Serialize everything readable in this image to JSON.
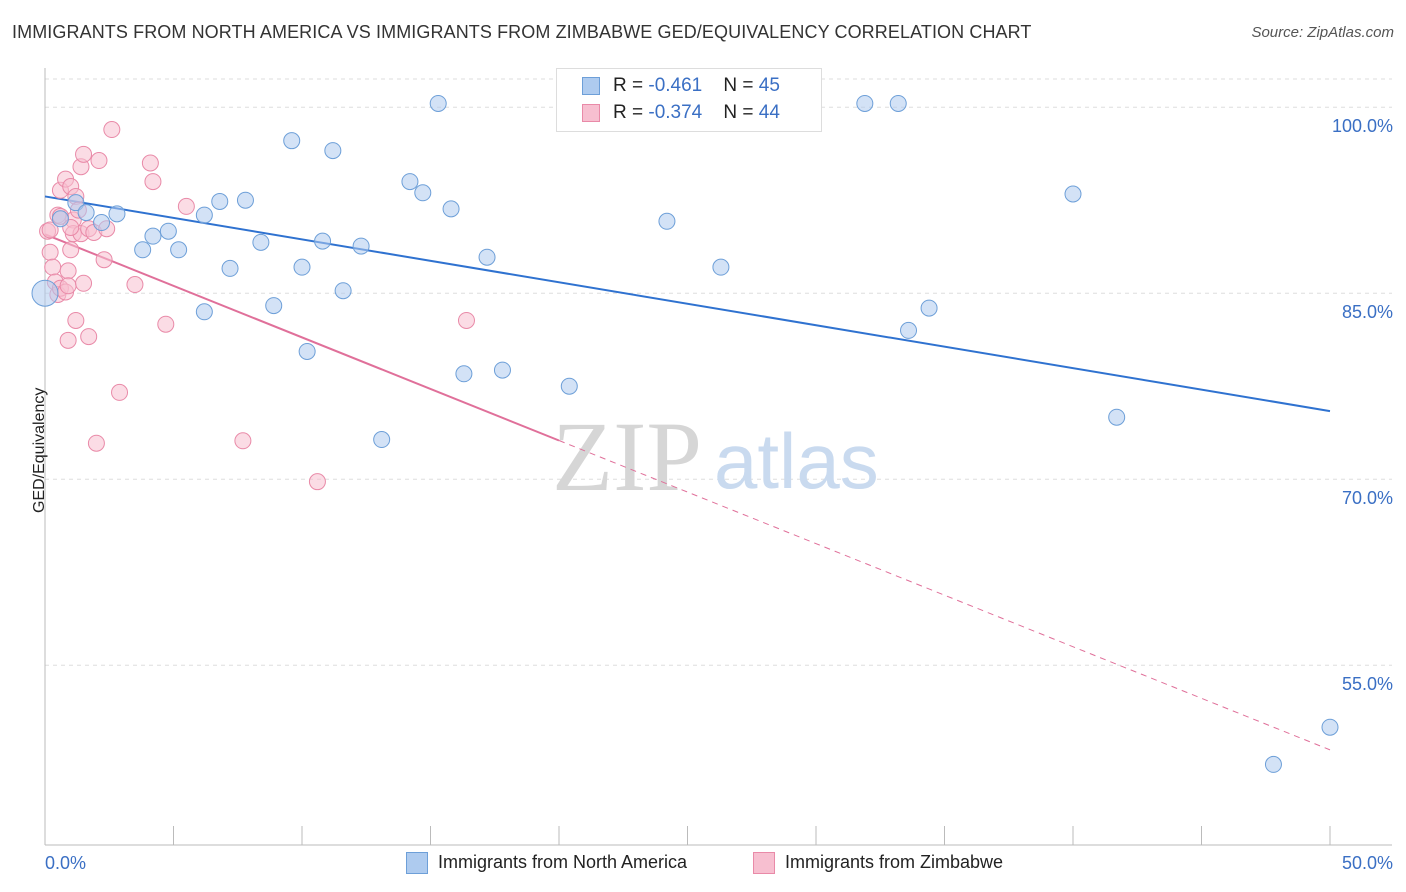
{
  "title": "IMMIGRANTS FROM NORTH AMERICA VS IMMIGRANTS FROM ZIMBABWE GED/EQUIVALENCY CORRELATION CHART",
  "source": "Source: ZipAtlas.com",
  "watermark": {
    "zip": "ZIP",
    "atlas": "atlas"
  },
  "legend": {
    "rows": [
      {
        "r_label": "R = ",
        "r_value": "-0.461",
        "n_label": "N = ",
        "n_value": "45"
      },
      {
        "r_label": "R = ",
        "r_value": "-0.374",
        "n_label": "N = ",
        "n_value": "44"
      }
    ]
  },
  "colors": {
    "blue_fill": "#aecbef",
    "blue_stroke": "#6d9fd8",
    "blue_line": "#2f72d0",
    "pink_fill": "#f7bfd0",
    "pink_stroke": "#e98aa8",
    "pink_line": "#e0709a",
    "axis_text": "#3a6fc4",
    "grid": "#dddddd"
  },
  "chart_data": {
    "type": "scatter",
    "title": "IMMIGRANTS FROM NORTH AMERICA VS IMMIGRANTS FROM ZIMBABWE GED/EQUIVALENCY CORRELATION CHART",
    "xlabel": "",
    "ylabel": "GED/Equivalency",
    "xlim": [
      0,
      50
    ],
    "ylim": [
      40.5,
      103
    ],
    "x_tick_labels": [
      "0.0%",
      "50.0%"
    ],
    "y_ticks": [
      55,
      70,
      85,
      100
    ],
    "y_tick_labels": [
      "55.0%",
      "70.0%",
      "85.0%",
      "100.0%"
    ],
    "grid": true,
    "legend_placement": "bottom",
    "series": [
      {
        "name": "Immigrants from North America",
        "color": "blue",
        "points": [
          [
            0.0,
            85.0
          ],
          [
            0.6,
            91.0
          ],
          [
            1.2,
            92.3
          ],
          [
            1.6,
            91.5
          ],
          [
            2.8,
            91.4
          ],
          [
            2.2,
            90.7
          ],
          [
            3.8,
            88.5
          ],
          [
            4.2,
            89.6
          ],
          [
            4.8,
            90.0
          ],
          [
            5.2,
            88.5
          ],
          [
            6.2,
            83.5
          ],
          [
            6.2,
            91.3
          ],
          [
            6.8,
            92.4
          ],
          [
            7.2,
            87.0
          ],
          [
            7.8,
            92.5
          ],
          [
            8.4,
            89.1
          ],
          [
            8.9,
            84.0
          ],
          [
            9.6,
            97.3
          ],
          [
            10.0,
            87.1
          ],
          [
            10.2,
            80.3
          ],
          [
            10.8,
            89.2
          ],
          [
            11.2,
            96.5
          ],
          [
            11.6,
            85.2
          ],
          [
            12.3,
            88.8
          ],
          [
            13.1,
            73.2
          ],
          [
            14.2,
            94.0
          ],
          [
            14.7,
            93.1
          ],
          [
            15.3,
            100.3
          ],
          [
            15.8,
            91.8
          ],
          [
            16.3,
            78.5
          ],
          [
            17.2,
            87.9
          ],
          [
            17.8,
            78.8
          ],
          [
            20.4,
            77.5
          ],
          [
            24.2,
            90.8
          ],
          [
            26.3,
            87.1
          ],
          [
            27.8,
            100.2
          ],
          [
            31.9,
            100.3
          ],
          [
            33.2,
            100.3
          ],
          [
            33.6,
            82.0
          ],
          [
            34.4,
            83.8
          ],
          [
            40.0,
            93.0
          ],
          [
            41.7,
            75.0
          ],
          [
            50.0,
            50.0
          ],
          [
            47.8,
            47.0
          ],
          [
            29.0,
            100.2
          ]
        ]
      },
      {
        "name": "Immigrants from Zimbabwe",
        "color": "pink",
        "points": [
          [
            0.1,
            90.0
          ],
          [
            0.2,
            88.3
          ],
          [
            0.3,
            87.1
          ],
          [
            0.4,
            85.9
          ],
          [
            0.5,
            84.9
          ],
          [
            0.6,
            85.4
          ],
          [
            0.5,
            91.3
          ],
          [
            0.6,
            93.3
          ],
          [
            0.8,
            94.2
          ],
          [
            0.8,
            85.1
          ],
          [
            0.9,
            86.8
          ],
          [
            0.9,
            85.6
          ],
          [
            0.9,
            81.2
          ],
          [
            1.0,
            88.5
          ],
          [
            1.0,
            93.6
          ],
          [
            1.1,
            90.9
          ],
          [
            1.1,
            89.8
          ],
          [
            1.2,
            92.8
          ],
          [
            1.2,
            82.8
          ],
          [
            1.3,
            91.7
          ],
          [
            1.4,
            89.8
          ],
          [
            1.4,
            95.2
          ],
          [
            1.5,
            96.2
          ],
          [
            1.5,
            85.8
          ],
          [
            1.7,
            90.2
          ],
          [
            1.7,
            81.5
          ],
          [
            1.9,
            89.9
          ],
          [
            2.1,
            95.7
          ],
          [
            2.3,
            87.7
          ],
          [
            2.4,
            90.2
          ],
          [
            2.6,
            98.2
          ],
          [
            2.9,
            77.0
          ],
          [
            2.0,
            72.9
          ],
          [
            3.5,
            85.7
          ],
          [
            4.1,
            95.5
          ],
          [
            4.2,
            94.0
          ],
          [
            4.7,
            82.5
          ],
          [
            5.5,
            92.0
          ],
          [
            7.7,
            73.1
          ],
          [
            10.6,
            69.8
          ],
          [
            16.4,
            82.8
          ],
          [
            0.2,
            90.1
          ],
          [
            0.6,
            91.2
          ],
          [
            1.0,
            90.3
          ]
        ]
      }
    ]
  },
  "bottom_legend": {
    "items": [
      {
        "label": "Immigrants from North America"
      },
      {
        "label": "Immigrants from Zimbabwe"
      }
    ]
  }
}
